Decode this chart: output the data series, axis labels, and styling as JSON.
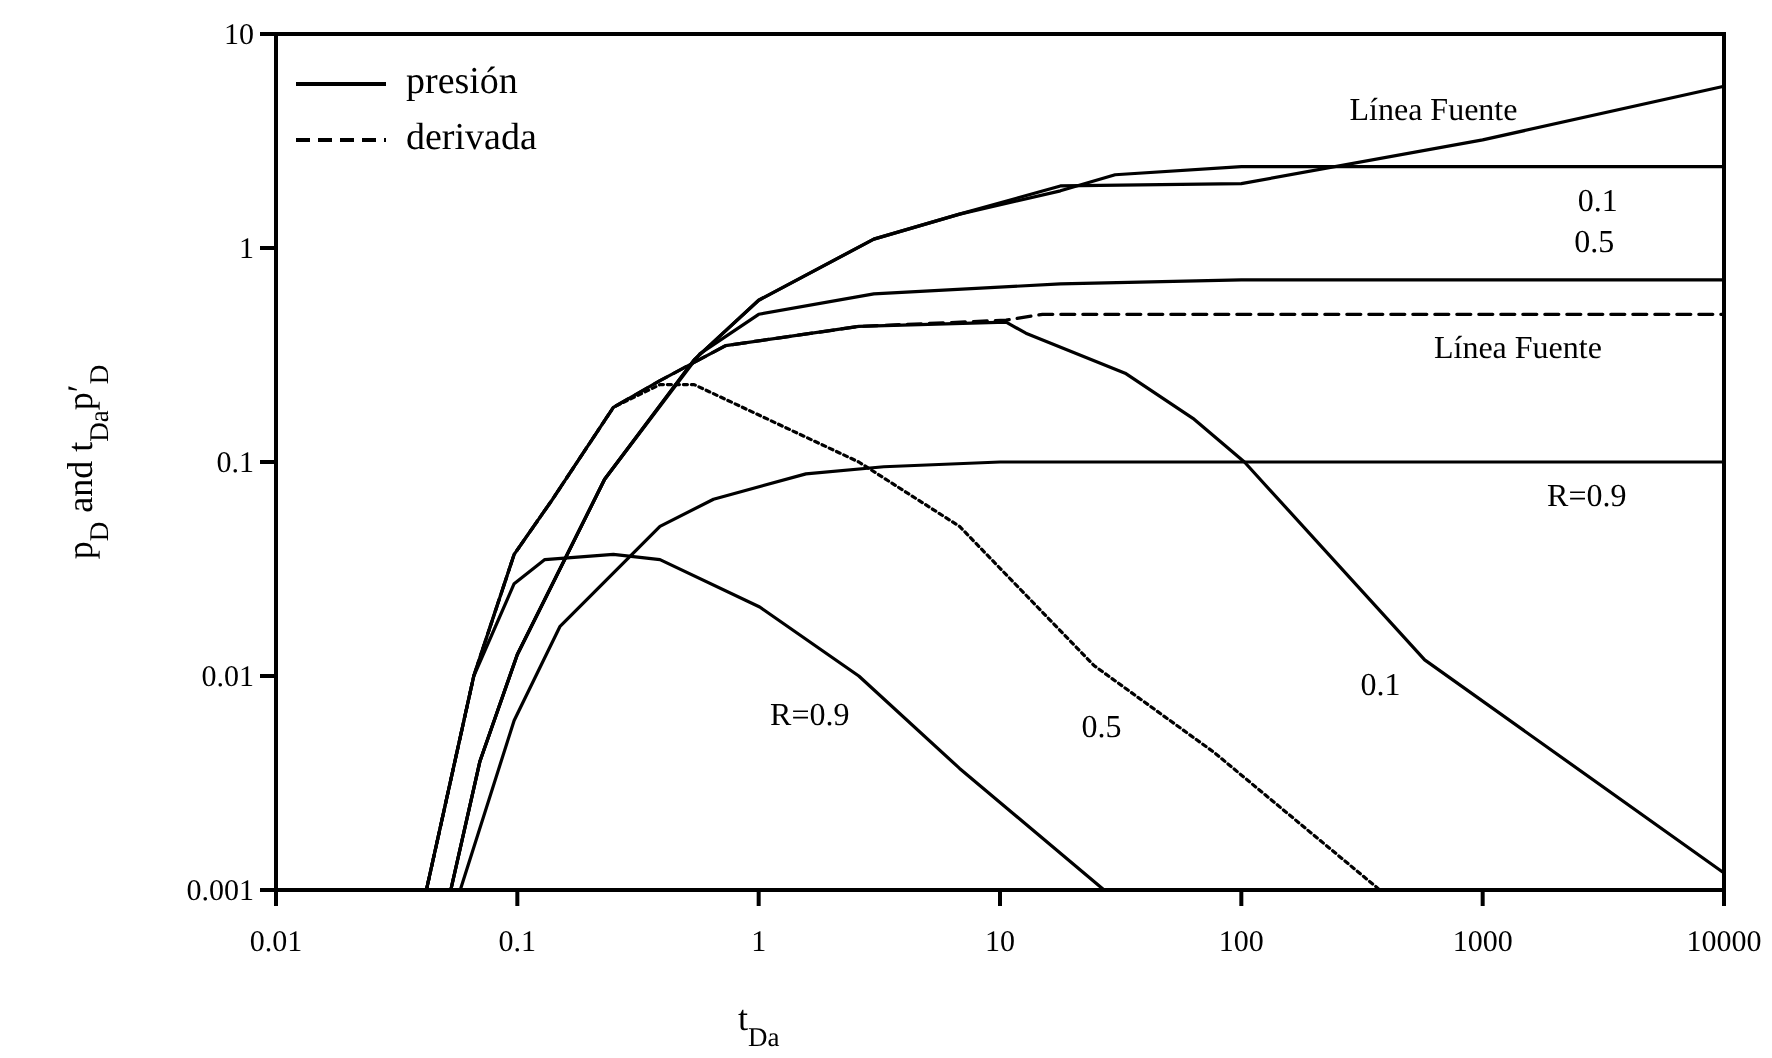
{
  "chart_data": {
    "type": "line",
    "log": "xy",
    "xlabel": "t$_{Da}$",
    "ylabel": "p$_{D}$ and t$_{Da}$p′$_{D}$",
    "xlim": [
      0.01,
      10000
    ],
    "xticks": [
      0.01,
      0.1,
      1,
      10,
      100,
      1000,
      10000
    ],
    "ylim": [
      0.001,
      10
    ],
    "yticks": [
      0.001,
      0.01,
      0.1,
      1,
      10
    ],
    "grid": false,
    "legend": "top left",
    "series": [
      {
        "name": "presión",
        "color": "#000000",
        "line_style": "solid",
        "x": [
          0.053,
          0.07,
          0.1,
          0.23,
          0.54,
          1,
          3,
          6.8,
          17.8,
          100,
          1000,
          10000
        ],
        "values": [
          0.001,
          0.004,
          0.0126,
          0.083,
          0.3,
          0.57,
          1.1,
          1.44,
          1.95,
          2.0,
          3.2,
          5.7
        ]
      },
      {
        "color": "#000000",
        "line_style": "solid",
        "x": [
          0.053,
          0.07,
          0.1,
          0.23,
          0.54,
          1,
          3,
          6.8,
          17.8,
          30,
          100,
          1000,
          10000
        ],
        "values": [
          0.001,
          0.004,
          0.0126,
          0.083,
          0.3,
          0.57,
          1.1,
          1.44,
          1.85,
          2.2,
          2.4,
          2.4,
          2.4
        ]
      },
      {
        "color": "#000000",
        "line_style": "solid",
        "x": [
          0.053,
          0.07,
          0.1,
          0.23,
          0.57,
          1,
          3,
          17.8,
          100,
          1000,
          10000
        ],
        "values": [
          0.001,
          0.004,
          0.0126,
          0.083,
          0.32,
          0.49,
          0.61,
          0.68,
          0.71,
          0.71,
          0.71
        ]
      },
      {
        "color": "#000000",
        "line_style": "solid",
        "x": [
          0.058,
          0.097,
          0.15,
          0.39,
          0.65,
          1.57,
          3.3,
          10,
          100,
          1000,
          10000
        ],
        "values": [
          0.001,
          0.0062,
          0.017,
          0.05,
          0.067,
          0.088,
          0.095,
          0.1,
          0.1,
          0.1,
          0.1
        ]
      },
      {
        "name": "derivada",
        "color": "#000000",
        "line_style": "dashed",
        "x": [
          0.042,
          0.066,
          0.097,
          0.14,
          0.25,
          0.39,
          0.73,
          2.6,
          10.6,
          15,
          100,
          1000,
          10000
        ],
        "values": [
          0.001,
          0.01,
          0.037,
          0.067,
          0.18,
          0.24,
          0.35,
          0.43,
          0.46,
          0.49,
          0.49,
          0.49,
          0.49
        ]
      },
      {
        "color": "#000000",
        "line_style": "solid",
        "x": [
          0.042,
          0.066,
          0.097,
          0.14,
          0.25,
          0.39,
          0.73,
          2.6,
          10.6,
          12.8,
          33,
          63,
          103,
          575,
          10000
        ],
        "values": [
          0.001,
          0.01,
          0.037,
          0.067,
          0.18,
          0.24,
          0.35,
          0.43,
          0.45,
          0.4,
          0.26,
          0.16,
          0.1,
          0.0119,
          0.0012
        ]
      },
      {
        "color": "#000000",
        "line_style": "dotted",
        "x": [
          0.042,
          0.066,
          0.097,
          0.14,
          0.25,
          0.39,
          0.54,
          2.6,
          6.8,
          24.5,
          77,
          375
        ],
        "values": [
          0.001,
          0.01,
          0.037,
          0.067,
          0.18,
          0.23,
          0.23,
          0.1,
          0.05,
          0.0112,
          0.0044,
          0.001
        ]
      },
      {
        "color": "#000000",
        "line_style": "solid",
        "x": [
          0.042,
          0.066,
          0.097,
          0.13,
          0.25,
          0.39,
          1.01,
          2.6,
          6.8,
          27
        ],
        "values": [
          0.001,
          0.01,
          0.027,
          0.035,
          0.037,
          0.035,
          0.021,
          0.01,
          0.0037,
          0.001
        ]
      }
    ],
    "annotations": [
      {
        "text": "Línea Fuente",
        "x": 665,
        "y": 2.95
      },
      {
        "text": "0.1",
        "x": 3000,
        "y": 2.4
      },
      {
        "text": "0.5",
        "x": 2900,
        "y": 0.71
      },
      {
        "text": "Línea Fuente",
        "x": 1400,
        "y": 0.49
      },
      {
        "text": "R=0.9",
        "x": 2700,
        "y": 0.1
      },
      {
        "text": "0.1",
        "x": 575,
        "y": 0.0119
      },
      {
        "text": "0.5",
        "x": 39,
        "y": 0.0077
      },
      {
        "text": "R=0.9",
        "x": 3,
        "y": 0.0086
      }
    ]
  }
}
